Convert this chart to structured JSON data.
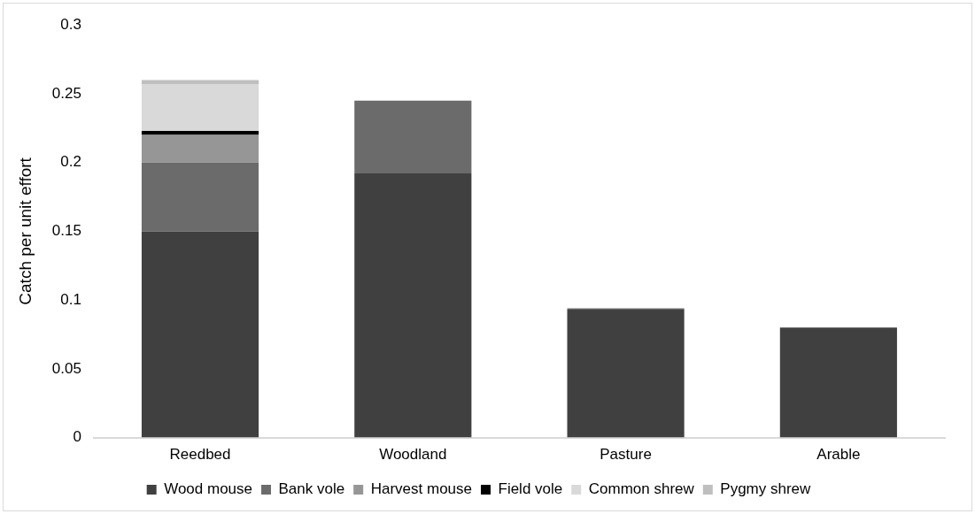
{
  "chart_data": {
    "type": "bar",
    "stacked": true,
    "ylabel": "Catch per unit effort",
    "categories": [
      "Reedbed",
      "Woodland",
      "Pasture",
      "Arable"
    ],
    "series": [
      {
        "name": "Wood mouse",
        "color": "#404040",
        "values": [
          0.15,
          0.192,
          0.093,
          0.08
        ]
      },
      {
        "name": "Bank vole",
        "color": "#6b6b6b",
        "values": [
          0.05,
          0.053,
          0.001,
          null
        ]
      },
      {
        "name": "Harvest mouse",
        "color": "#969696",
        "values": [
          0.02,
          null,
          null,
          null
        ]
      },
      {
        "name": "Field vole",
        "color": "#000000",
        "values": [
          0.003,
          null,
          null,
          null
        ]
      },
      {
        "name": "Common shrew",
        "color": "#d9d9d9",
        "values": [
          0.034,
          null,
          null,
          null
        ]
      },
      {
        "name": "Pygmy shrew",
        "color": "#bfbfbf",
        "values": [
          0.003,
          null,
          null,
          null
        ]
      }
    ],
    "ylim": [
      0,
      0.3
    ],
    "yticks": [
      0,
      0.05,
      0.1,
      0.15,
      0.2,
      0.25,
      0.3
    ],
    "grid": false,
    "legend": "bottom"
  }
}
